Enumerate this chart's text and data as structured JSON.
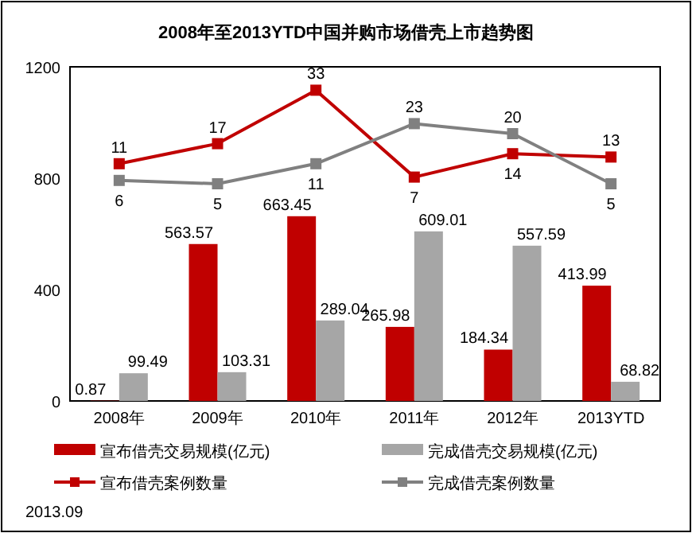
{
  "chart_data": {
    "type": "bar",
    "title": "2008年至2013YTD中国并购市场借壳上市趋势图",
    "categories": [
      "2008年",
      "2009年",
      "2010年",
      "2011年",
      "2012年",
      "2013YTD"
    ],
    "series": [
      {
        "name": "宣布借壳交易规模(亿元)",
        "color": "#c00000",
        "values": [
          0.87,
          563.57,
          663.45,
          265.98,
          184.34,
          413.99
        ]
      },
      {
        "name": "完成借壳交易规模(亿元)",
        "color": "#a6a6a6",
        "values": [
          99.49,
          103.31,
          289.04,
          609.01,
          557.59,
          68.82
        ]
      },
      {
        "name": "宣布借壳案例数量",
        "type": "line",
        "axis": "y2",
        "color": "#c00000",
        "values": [
          11,
          17,
          33,
          7,
          14,
          13
        ]
      },
      {
        "name": "完成借壳案例数量",
        "type": "line",
        "axis": "y2",
        "color": "#808080",
        "values": [
          6,
          5,
          11,
          23,
          20,
          5
        ]
      }
    ],
    "ylim": [
      0,
      1200
    ],
    "yticks": [
      0,
      400,
      800,
      1200
    ],
    "y2lim": [
      -60,
      40
    ],
    "tick_labels": "xy",
    "marker": "square",
    "line_style": "solid",
    "data_labels": true,
    "legend": "bottom",
    "grid": false,
    "annotations": [
      "2013.09"
    ]
  }
}
